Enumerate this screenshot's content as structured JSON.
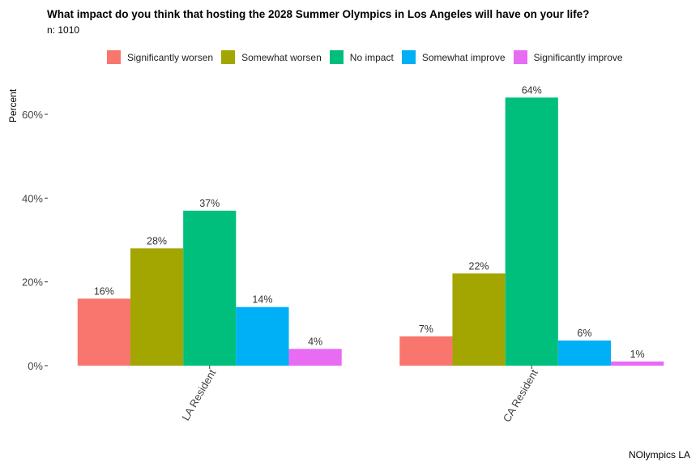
{
  "title": "What impact do you think that hosting the 2028 Summer Olympics in Los Angeles will have on your life?",
  "subtitle": "n: 1010",
  "caption": "NOlympics LA",
  "chart_data": {
    "type": "bar",
    "title": "What impact do you think that hosting the 2028 Summer Olympics in Los Angeles will have on your life?",
    "subtitle": "n: 1010",
    "xlabel": "",
    "ylabel": "Percent",
    "ylim": [
      0,
      0.66
    ],
    "yticks": [
      0,
      0.2,
      0.4,
      0.6
    ],
    "ytick_labels": [
      "0%",
      "20%",
      "40%",
      "60%"
    ],
    "categories": [
      "LA Resident",
      "CA Resident"
    ],
    "series": [
      {
        "name": "Significantly worsen",
        "color": "#F8766D",
        "values": [
          0.16,
          0.07
        ],
        "labels": [
          "16%",
          "7%"
        ]
      },
      {
        "name": "Somewhat worsen",
        "color": "#A3A500",
        "values": [
          0.28,
          0.22
        ],
        "labels": [
          "28%",
          "22%"
        ]
      },
      {
        "name": "No impact",
        "color": "#00BF7D",
        "values": [
          0.37,
          0.64
        ],
        "labels": [
          "37%",
          "64%"
        ]
      },
      {
        "name": "Somewhat improve",
        "color": "#00B0F6",
        "values": [
          0.14,
          0.06
        ],
        "labels": [
          "14%",
          "6%"
        ]
      },
      {
        "name": "Significantly improve",
        "color": "#E76BF3",
        "values": [
          0.04,
          0.01
        ],
        "labels": [
          "4%",
          "1%"
        ]
      }
    ],
    "grid": false,
    "legend_position": "top"
  }
}
